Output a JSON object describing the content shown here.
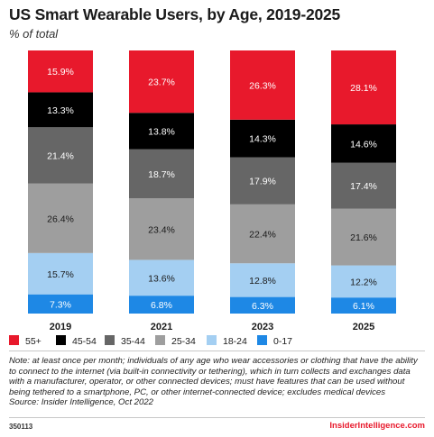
{
  "title": "US Smart Wearable Users, by Age, 2019-2025",
  "subtitle": "% of total",
  "chart_data": {
    "type": "bar",
    "stacked": true,
    "categories": [
      "2019",
      "2021",
      "2023",
      "2025"
    ],
    "ylim": [
      0,
      100
    ],
    "grid": false,
    "legend_position": "bottom",
    "series": [
      {
        "name": "0-17",
        "color": "#1e88e5",
        "values": [
          7.3,
          6.8,
          6.3,
          6.1
        ],
        "labels": [
          "7.3%",
          "6.8%",
          "6.3%",
          "6.1%"
        ]
      },
      {
        "name": "18-24",
        "color": "#a4cff2",
        "values": [
          15.7,
          13.6,
          12.8,
          12.2
        ],
        "labels": [
          "15.7%",
          "13.6%",
          "12.8%",
          "12.2%"
        ]
      },
      {
        "name": "25-34",
        "color": "#9e9e9e",
        "values": [
          26.4,
          23.4,
          22.4,
          21.6
        ],
        "labels": [
          "26.4%",
          "23.4%",
          "22.4%",
          "21.6%"
        ]
      },
      {
        "name": "35-44",
        "color": "#666666",
        "values": [
          21.4,
          18.7,
          17.9,
          17.4
        ],
        "labels": [
          "21.4%",
          "18.7%",
          "17.9%",
          "17.4%"
        ]
      },
      {
        "name": "45-54",
        "color": "#000000",
        "values": [
          13.3,
          13.8,
          14.3,
          14.6
        ],
        "labels": [
          "13.3%",
          "13.8%",
          "14.3%",
          "14.6%"
        ]
      },
      {
        "name": "55+",
        "color": "#e8192c",
        "values": [
          15.9,
          23.7,
          26.3,
          28.1
        ],
        "labels": [
          "15.9%",
          "23.7%",
          "26.3%",
          "28.1%"
        ]
      }
    ],
    "legend_order": [
      "55+",
      "45-54",
      "35-44",
      "25-34",
      "18-24",
      "0-17"
    ]
  },
  "note": "Note: at least once per month; individuals of any age who wear accessories or clothing that have the ability to connect to the internet (via built-in connectivity or tethering), which in turn collects and exchanges data with a manufacturer, operator, or other connected devices; must have features that can be used without being tethered to a smartphone, PC, or other internet-connected device; excludes medical devices",
  "source": "Source: Insider Intelligence, Oct 2022",
  "footer": {
    "id": "350113",
    "brand": "InsiderIntelligence.com"
  }
}
